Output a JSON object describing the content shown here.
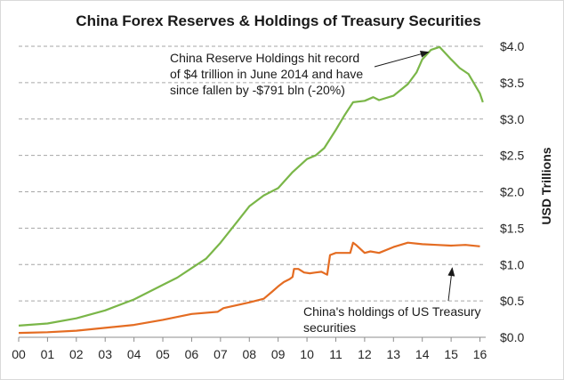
{
  "chart_data": {
    "type": "line",
    "title": "China Forex Reserves  & Holdings of Treasury Securities",
    "xlabel": "",
    "ylabel": "USD Trillions",
    "xlim": [
      0,
      16.2
    ],
    "ylim": [
      0,
      4.0
    ],
    "x_ticks": [
      "00",
      "01",
      "02",
      "03",
      "04",
      "05",
      "06",
      "07",
      "08",
      "09",
      "10",
      "11",
      "12",
      "13",
      "14",
      "15",
      "16"
    ],
    "y_ticks": [
      "$0.0",
      "$0.5",
      "$1.0",
      "$1.5",
      "$2.0",
      "$2.5",
      "$3.0",
      "$3.5",
      "$4.0"
    ],
    "grid": true,
    "series": [
      {
        "name": "China Reserve Holdings",
        "color": "#7ab648",
        "x": [
          0,
          1,
          2,
          3,
          4,
          5,
          5.5,
          6,
          6.5,
          7,
          7.5,
          8,
          8.5,
          9,
          9.5,
          10,
          10.3,
          10.6,
          11,
          11.3,
          11.6,
          12,
          12.3,
          12.5,
          13,
          13.5,
          13.8,
          14,
          14.3,
          14.6,
          15,
          15.3,
          15.6,
          16,
          16.1
        ],
        "y": [
          0.16,
          0.19,
          0.26,
          0.37,
          0.52,
          0.72,
          0.82,
          0.95,
          1.08,
          1.3,
          1.55,
          1.8,
          1.95,
          2.05,
          2.27,
          2.45,
          2.5,
          2.6,
          2.85,
          3.05,
          3.23,
          3.25,
          3.3,
          3.26,
          3.32,
          3.48,
          3.64,
          3.82,
          3.95,
          3.99,
          3.82,
          3.7,
          3.62,
          3.35,
          3.23
        ]
      },
      {
        "name": "China's holdings of US Treasury securities",
        "color": "#e46c22",
        "x": [
          0,
          1,
          2,
          3,
          4,
          5,
          6,
          6.9,
          7.1,
          8,
          8.5,
          8.8,
          9,
          9.2,
          9.4,
          9.5,
          9.55,
          9.7,
          9.9,
          10.1,
          10.3,
          10.5,
          10.7,
          10.8,
          11,
          11.5,
          11.6,
          11.7,
          12,
          12.2,
          12.5,
          13,
          13.5,
          14,
          14.5,
          15,
          15.5,
          16
        ],
        "y": [
          0.06,
          0.07,
          0.09,
          0.13,
          0.17,
          0.24,
          0.32,
          0.35,
          0.4,
          0.48,
          0.53,
          0.63,
          0.7,
          0.76,
          0.8,
          0.83,
          0.94,
          0.94,
          0.89,
          0.88,
          0.89,
          0.9,
          0.86,
          1.13,
          1.16,
          1.16,
          1.3,
          1.27,
          1.16,
          1.18,
          1.16,
          1.24,
          1.3,
          1.28,
          1.27,
          1.26,
          1.27,
          1.25
        ]
      }
    ],
    "annotations": [
      {
        "lines": [
          "China Reserve Holdings hit record",
          "of $4 trillion in June 2014 and have",
          "since fallen by -$791 bln (-20%)"
        ],
        "arrow_to": [
          14.4,
          3.97
        ]
      },
      {
        "lines": [
          "China's holdings of US Treasury",
          "securities"
        ],
        "arrow_to": [
          15.1,
          1.05
        ]
      }
    ]
  }
}
